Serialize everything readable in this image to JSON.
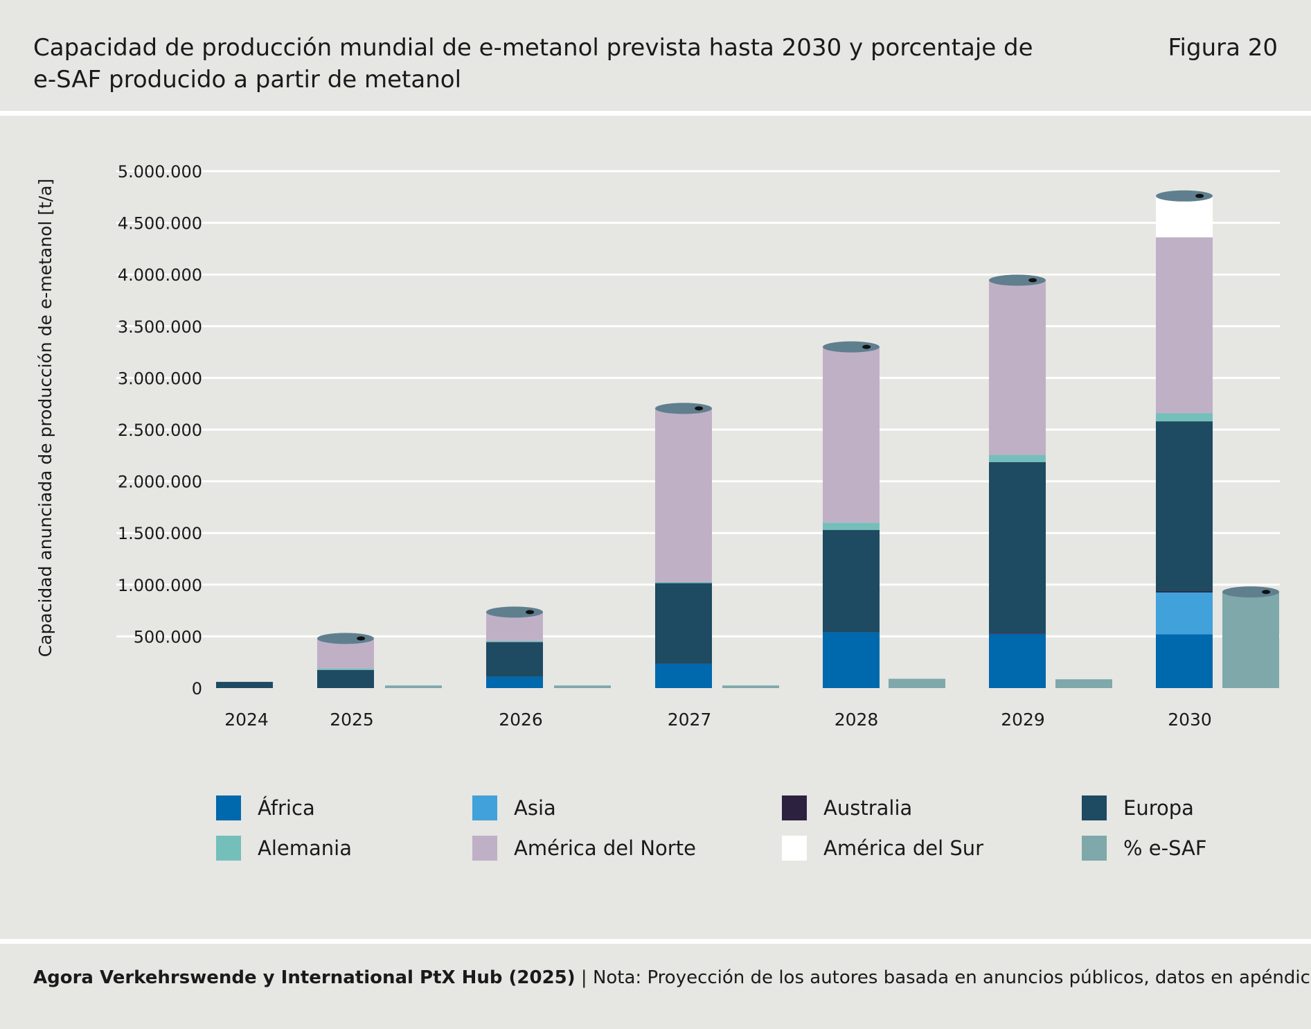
{
  "header": {
    "title": "Capacidad de producción mundial de e-metanol prevista hasta 2030 y porcentaje de e-SAF producido a partir de metanol",
    "figure_label": "Figura 20"
  },
  "footer": {
    "source_bold": "Agora Verkehrswende y International PtX Hub (2025)",
    "separator": "|",
    "note": "Nota: Proyección de los autores basada en anuncios públicos, datos en apéndice."
  },
  "colors": {
    "africa": "#0068ad",
    "asia": "#41a1da",
    "australia": "#2d2140",
    "europa": "#1e4a62",
    "alemania": "#75bfbb",
    "america_norte": "#c0b0c6",
    "america_sur": "#ffffff",
    "esaf": "#7ea8aa",
    "cap_top": "#5f7f8e",
    "gridline": "#ffffff",
    "background": "#e6e6e3"
  },
  "chart_data": {
    "type": "bar",
    "stacked": true,
    "ylabel": "Capacidad anunciada de producción de e-metanol [t/a]",
    "xlabel": "",
    "ylim": [
      0,
      5000000
    ],
    "yticks": [
      0,
      500000,
      1000000,
      1500000,
      2000000,
      2500000,
      3000000,
      3500000,
      4000000,
      4500000,
      5000000
    ],
    "ytick_labels": [
      "0",
      "500.000",
      "1.000.000",
      "1.500.000",
      "2.000.000",
      "2.500.000",
      "3.000.000",
      "3.500.000",
      "4.000.000",
      "4.500.000",
      "5.000.000"
    ],
    "grid": true,
    "legend_position": "bottom",
    "categories": [
      "2024",
      "2025",
      "2026",
      "2027",
      "2028",
      "2029",
      "2030"
    ],
    "series": [
      {
        "name": "África",
        "color_key": "africa",
        "values": [
          0,
          0,
          110000,
          235000,
          540000,
          525000,
          520000
        ]
      },
      {
        "name": "Asia",
        "color_key": "asia",
        "values": [
          0,
          0,
          0,
          0,
          0,
          0,
          405000
        ]
      },
      {
        "name": "Australia",
        "color_key": "australia",
        "values": [
          0,
          0,
          0,
          0,
          0,
          10000,
          10000
        ]
      },
      {
        "name": "Europa",
        "color_key": "europa",
        "values": [
          60000,
          175000,
          335000,
          780000,
          990000,
          1650000,
          1645000
        ]
      },
      {
        "name": "Alemania",
        "color_key": "alemania",
        "values": [
          0,
          15000,
          10000,
          10000,
          70000,
          70000,
          80000
        ]
      },
      {
        "name": "América del Norte",
        "color_key": "america_norte",
        "values": [
          0,
          290000,
          280000,
          1680000,
          1700000,
          1690000,
          1700000
        ]
      },
      {
        "name": "América del Sur",
        "color_key": "america_sur",
        "values": [
          0,
          0,
          0,
          0,
          0,
          0,
          400000
        ]
      }
    ],
    "esaf_series": {
      "name": "% e-SAF",
      "color_key": "esaf",
      "values": [
        0,
        25000,
        25000,
        25000,
        90000,
        85000,
        930000
      ]
    },
    "legend": [
      {
        "label": "África",
        "color_key": "africa"
      },
      {
        "label": "Asia",
        "color_key": "asia"
      },
      {
        "label": "Australia",
        "color_key": "australia"
      },
      {
        "label": "Europa",
        "color_key": "europa"
      },
      {
        "label": "Alemania",
        "color_key": "alemania"
      },
      {
        "label": "América del Norte",
        "color_key": "america_norte"
      },
      {
        "label": "América del Sur",
        "color_key": "america_sur"
      },
      {
        "label": "% e-SAF",
        "color_key": "esaf"
      }
    ]
  }
}
